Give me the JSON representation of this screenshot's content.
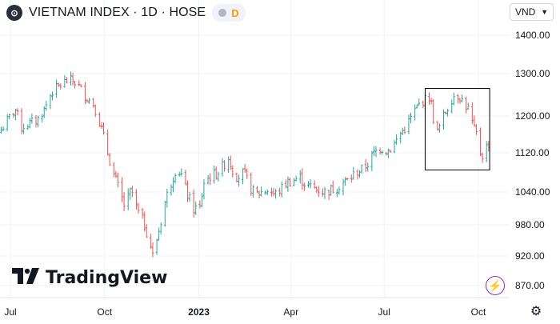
{
  "header": {
    "title": "VIETNAM INDEX · 1D · HOSE",
    "status_badge": "D",
    "currency": "VND",
    "logo_icon": "vn-index-logo-icon"
  },
  "branding": {
    "logo_text": "TradingView",
    "logo_mark": "TV"
  },
  "colors": {
    "up": "#26a69a",
    "down": "#ef5350",
    "grid": "#f0f3fa",
    "axis_text": "#131722"
  },
  "icons": {
    "currency_dropdown": "chevron-down-icon",
    "bolt": "lightning-icon",
    "settings": "gear-icon"
  },
  "chart_data": {
    "type": "ohlc",
    "ylim": [
      870,
      1400
    ],
    "y_ticks": [
      870,
      920,
      980,
      1040,
      1120,
      1200,
      1300,
      1400
    ],
    "y_tick_labels": [
      "870.00",
      "920.00",
      "980.00",
      "1040.00",
      "1120.00",
      "1200.00",
      "1300.00",
      "1400.00"
    ],
    "x_start": "2022-07-01",
    "x_end": "2023-10-15",
    "x_ticks": [
      {
        "date": "2022-07-01",
        "label": "Jul",
        "bold": false
      },
      {
        "date": "2022-10-01",
        "label": "Oct",
        "bold": false
      },
      {
        "date": "2023-01-01",
        "label": "2023",
        "bold": true
      },
      {
        "date": "2023-04-01",
        "label": "Apr",
        "bold": false
      },
      {
        "date": "2023-07-01",
        "label": "Jul",
        "bold": false
      },
      {
        "date": "2023-10-01",
        "label": "Oct",
        "bold": false
      }
    ],
    "highlight_box": {
      "from": "2023-08-10",
      "to": "2023-10-12",
      "low": 1085,
      "high": 1265
    },
    "close_path": [
      [
        "2022-06-22",
        1170
      ],
      [
        "2022-07-01",
        1200
      ],
      [
        "2022-07-06",
        1215
      ],
      [
        "2022-07-12",
        1175
      ],
      [
        "2022-07-20",
        1185
      ],
      [
        "2022-07-27",
        1190
      ],
      [
        "2022-08-03",
        1215
      ],
      [
        "2022-08-10",
        1255
      ],
      [
        "2022-08-17",
        1270
      ],
      [
        "2022-08-24",
        1282
      ],
      [
        "2022-08-30",
        1285
      ],
      [
        "2022-09-06",
        1270
      ],
      [
        "2022-09-12",
        1248
      ],
      [
        "2022-09-20",
        1228
      ],
      [
        "2022-09-27",
        1180
      ],
      [
        "2022-10-04",
        1120
      ],
      [
        "2022-10-10",
        1075
      ],
      [
        "2022-10-15",
        1045
      ],
      [
        "2022-10-21",
        1010
      ],
      [
        "2022-10-27",
        1045
      ],
      [
        "2022-11-02",
        1005
      ],
      [
        "2022-11-08",
        985
      ],
      [
        "2022-11-14",
        950
      ],
      [
        "2022-11-17",
        920
      ],
      [
        "2022-11-22",
        960
      ],
      [
        "2022-11-28",
        1015
      ],
      [
        "2022-12-05",
        1060
      ],
      [
        "2022-12-10",
        1090
      ],
      [
        "2022-12-15",
        1075
      ],
      [
        "2022-12-20",
        1040
      ],
      [
        "2022-12-26",
        1010
      ],
      [
        "2023-01-02",
        1010
      ],
      [
        "2023-01-06",
        1060
      ],
      [
        "2023-01-11",
        1070
      ],
      [
        "2023-01-16",
        1075
      ],
      [
        "2023-01-22",
        1085
      ],
      [
        "2023-01-30",
        1110
      ],
      [
        "2023-02-03",
        1085
      ],
      [
        "2023-02-08",
        1070
      ],
      [
        "2023-02-14",
        1080
      ],
      [
        "2023-02-20",
        1050
      ],
      [
        "2023-02-25",
        1035
      ],
      [
        "2023-03-03",
        1040
      ],
      [
        "2023-03-10",
        1045
      ],
      [
        "2023-03-16",
        1035
      ],
      [
        "2023-03-22",
        1045
      ],
      [
        "2023-03-28",
        1060
      ],
      [
        "2023-04-04",
        1065
      ],
      [
        "2023-04-10",
        1070
      ],
      [
        "2023-04-15",
        1055
      ],
      [
        "2023-04-21",
        1050
      ],
      [
        "2023-04-27",
        1045
      ],
      [
        "2023-05-04",
        1040
      ],
      [
        "2023-05-10",
        1045
      ],
      [
        "2023-05-16",
        1050
      ],
      [
        "2023-05-22",
        1060
      ],
      [
        "2023-05-28",
        1065
      ],
      [
        "2023-06-03",
        1080
      ],
      [
        "2023-06-09",
        1085
      ],
      [
        "2023-06-15",
        1098
      ],
      [
        "2023-06-21",
        1120
      ],
      [
        "2023-06-27",
        1130
      ],
      [
        "2023-07-04",
        1125
      ],
      [
        "2023-07-10",
        1135
      ],
      [
        "2023-07-16",
        1160
      ],
      [
        "2023-07-22",
        1175
      ],
      [
        "2023-07-28",
        1200
      ],
      [
        "2023-08-03",
        1225
      ],
      [
        "2023-08-09",
        1238
      ],
      [
        "2023-08-15",
        1245
      ],
      [
        "2023-08-18",
        1195
      ],
      [
        "2023-08-22",
        1165
      ],
      [
        "2023-08-28",
        1200
      ],
      [
        "2023-09-04",
        1235
      ],
      [
        "2023-09-08",
        1252
      ],
      [
        "2023-09-13",
        1245
      ],
      [
        "2023-09-18",
        1225
      ],
      [
        "2023-09-22",
        1215
      ],
      [
        "2023-09-26",
        1175
      ],
      [
        "2023-09-30",
        1155
      ],
      [
        "2023-10-04",
        1110
      ],
      [
        "2023-10-07",
        1125
      ],
      [
        "2023-10-11",
        1140
      ]
    ]
  }
}
